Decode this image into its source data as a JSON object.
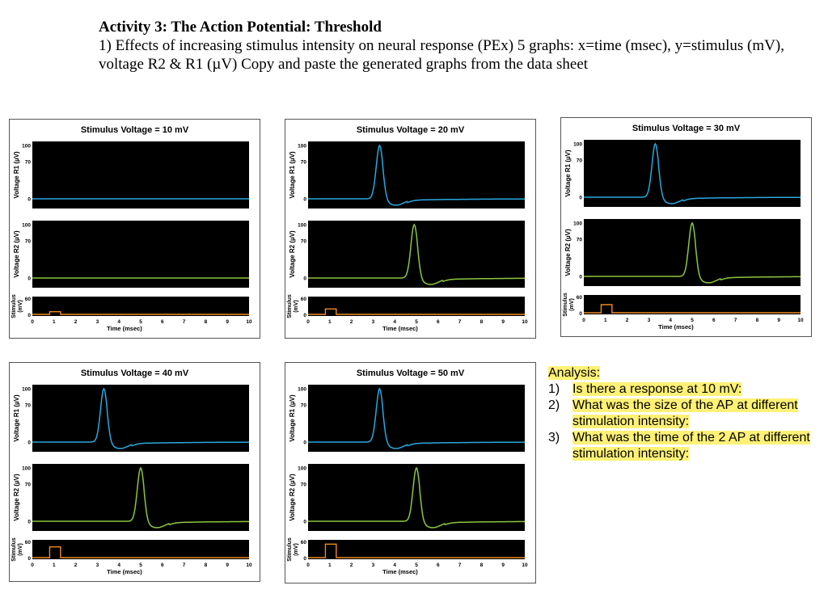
{
  "header": {
    "heading": "Activity 3: The Action Potential: Threshold",
    "line1": "1) Effects of increasing stimulus intensity on neural response (PEx) 5 graphs: x=time (msec), y=stimulus (mV), voltage R2 & R1 (µV) Copy and paste the generated graphs from the data sheet"
  },
  "axis_labels": {
    "r1": "Voltage R1 (µV)",
    "r2": "Voltage R2 (µV)",
    "stim_top": "Stimulus",
    "stim_bottom": "(mV)",
    "time": "Time (msec)"
  },
  "colors": {
    "r1": "#29a8e0",
    "r2": "#8cc63f",
    "stim": "#f08a24",
    "plot_bg": "#000000"
  },
  "chart_data": [
    {
      "type": "line",
      "title": "Stimulus Voltage = 10 mV",
      "stimulus_mv": 10,
      "r1_peak_ms": null,
      "r2_peak_ms": null,
      "xlim": [
        0,
        10
      ],
      "r1_ylim": [
        0,
        100
      ],
      "r2_ylim": [
        0,
        100
      ],
      "stim_ylim": [
        0,
        60
      ]
    },
    {
      "type": "line",
      "title": "Stimulus Voltage = 20 mV",
      "stimulus_mv": 20,
      "r1_peak_ms": 3.3,
      "r2_peak_ms": 4.9,
      "xlim": [
        0,
        10
      ],
      "r1_ylim": [
        0,
        100
      ],
      "r2_ylim": [
        0,
        100
      ],
      "stim_ylim": [
        0,
        60
      ]
    },
    {
      "type": "line",
      "title": "Stimulus Voltage = 30 mV",
      "stimulus_mv": 30,
      "r1_peak_ms": 3.3,
      "r2_peak_ms": 5.0,
      "xlim": [
        0,
        10
      ],
      "r1_ylim": [
        0,
        100
      ],
      "r2_ylim": [
        0,
        100
      ],
      "stim_ylim": [
        0,
        60
      ]
    },
    {
      "type": "line",
      "title": "Stimulus Voltage = 40 mV",
      "stimulus_mv": 40,
      "r1_peak_ms": 3.3,
      "r2_peak_ms": 5.0,
      "xlim": [
        0,
        10
      ],
      "r1_ylim": [
        0,
        100
      ],
      "r2_ylim": [
        0,
        100
      ],
      "stim_ylim": [
        0,
        60
      ]
    },
    {
      "type": "line",
      "title": "Stimulus Voltage = 50 mV",
      "stimulus_mv": 50,
      "r1_peak_ms": 3.3,
      "r2_peak_ms": 5.0,
      "xlim": [
        0,
        10
      ],
      "r1_ylim": [
        0,
        100
      ],
      "r2_ylim": [
        0,
        100
      ],
      "stim_ylim": [
        0,
        60
      ]
    }
  ],
  "ticks": {
    "x": [
      "0",
      "1",
      "2",
      "3",
      "4",
      "5",
      "6",
      "7",
      "8",
      "9",
      "10"
    ],
    "voltage": [
      "100",
      "70",
      "0"
    ],
    "stim": [
      "60",
      "0"
    ]
  },
  "analysis": {
    "heading": "Analysis:",
    "items": [
      {
        "num": "1)",
        "text": "Is there a response at 10 mV:"
      },
      {
        "num": "2)",
        "text": "What was the size of the AP at different stimulation intensity:"
      },
      {
        "num": "3)",
        "text": "What was the time of the 2 AP at different stimulation intensity:"
      }
    ]
  }
}
